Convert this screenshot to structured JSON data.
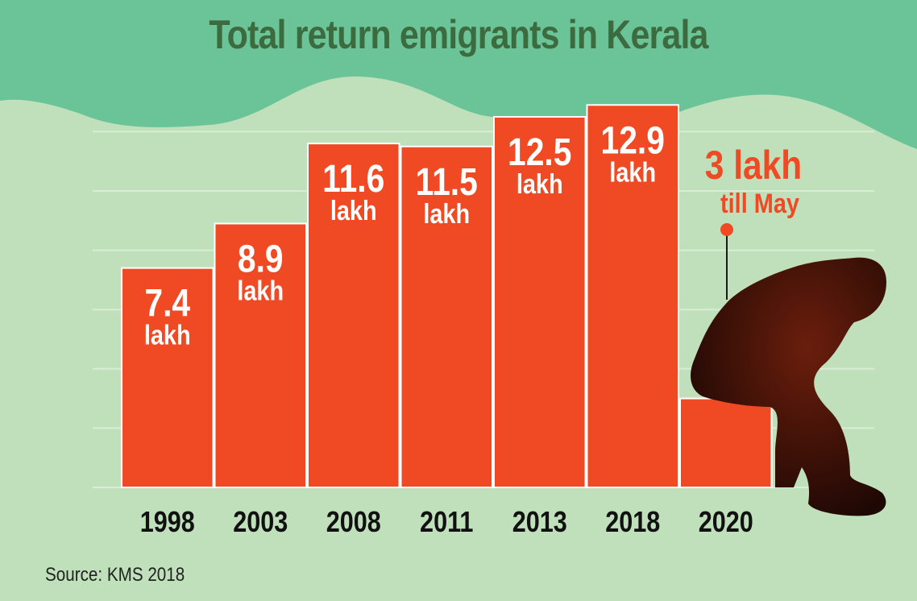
{
  "title": "Total return emigrants in Kerala",
  "source": "Source: KMS 2018",
  "colors": {
    "bar": "#f04a24",
    "title": "#3d6b40",
    "background": "#bfe0bb",
    "hills": "#6bc498",
    "grid": "#d9ecd5"
  },
  "chart_data": {
    "type": "bar",
    "title": "Total return emigrants in Kerala",
    "categories": [
      "1998",
      "2003",
      "2008",
      "2011",
      "2013",
      "2018",
      "2020"
    ],
    "values": [
      7.4,
      8.9,
      11.6,
      11.5,
      12.5,
      12.9,
      3
    ],
    "value_labels": [
      "7.4",
      "8.9",
      "11.6",
      "11.5",
      "12.5",
      "12.9",
      "3 lakh"
    ],
    "unit_label": "lakh",
    "annotation": "till May",
    "ylim": [
      0,
      14
    ],
    "grid": true,
    "xlabel": "",
    "ylabel": ""
  }
}
